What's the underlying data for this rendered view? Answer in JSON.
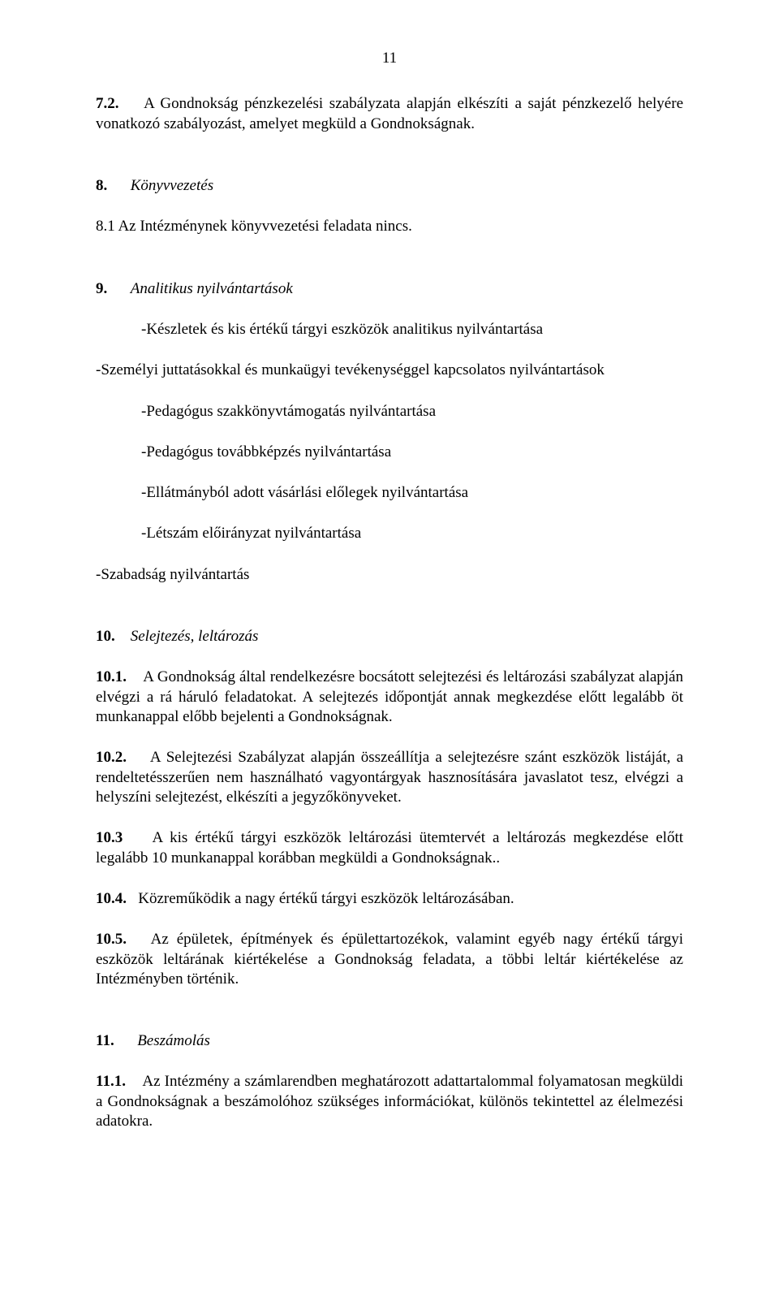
{
  "page_number": "11",
  "s7_2": {
    "num": "7.2.",
    "text": "A Gondnokság pénzkezelési szabályzata alapján elkészíti a saját pénzkezelő helyére vonatkozó szabályozást, amelyet megküld a Gondnokságnak."
  },
  "s8": {
    "num": "8.",
    "title": "Könyvvezetés"
  },
  "s8_1": {
    "text": "8.1 Az Intézménynek könyvvezetési feladata nincs."
  },
  "s9": {
    "num": "9.",
    "title": "Analitikus nyilvántartások"
  },
  "s9_items": {
    "i1": "-Készletek és kis értékű tárgyi eszközök analitikus nyilvántartása",
    "i2": "-Személyi juttatásokkal és munkaügyi tevékenységgel kapcsolatos nyilvántartások",
    "i3": "-Pedagógus szakkönyvtámogatás nyilvántartása",
    "i4": "-Pedagógus továbbképzés nyilvántartása",
    "i5": "-Ellátmányból adott vásárlási előlegek nyilvántartása",
    "i6": "-Létszám előirányzat nyilvántartása",
    "i7": "-Szabadság nyilvántartás"
  },
  "s10": {
    "num": "10.",
    "title": "Selejtezés, leltározás"
  },
  "s10_1": {
    "num": "10.1.",
    "text": "A Gondnokság által rendelkezésre bocsátott selejtezési és leltározási szabályzat alapján elvégzi a rá háruló feladatokat. A selejtezés időpontját annak megkezdése előtt legalább öt munkanappal előbb bejelenti a Gondnokságnak."
  },
  "s10_2": {
    "num": "10.2.",
    "text": "A Selejtezési Szabályzat alapján összeállítja a selejtezésre szánt eszközök listáját, a rendeltetésszerűen nem használható vagyontárgyak hasznosítására javaslatot tesz, elvégzi a helyszíni selejtezést, elkészíti a jegyzőkönyveket."
  },
  "s10_3": {
    "num": "10.3",
    "text": "A kis értékű tárgyi eszközök leltározási ütemtervét a leltározás megkezdése előtt legalább 10 munkanappal korábban megküldi a Gondnokságnak.."
  },
  "s10_4": {
    "num": "10.4.",
    "text": "Közreműködik a nagy értékű tárgyi eszközök leltározásában."
  },
  "s10_5": {
    "num": "10.5.",
    "text": "Az épületek, építmények és épülettartozékok, valamint egyéb nagy értékű tárgyi eszközök leltárának kiértékelése a Gondnokság feladata, a többi leltár kiértékelése az Intézményben történik."
  },
  "s11": {
    "num": "11.",
    "title": "Beszámolás"
  },
  "s11_1": {
    "num": "11.1.",
    "text": "Az Intézmény a számlarendben meghatározott adattartalommal folyamatosan megküldi a Gondnokságnak a beszámolóhoz szükséges információkat, különös tekintettel az élelmezési adatokra."
  }
}
